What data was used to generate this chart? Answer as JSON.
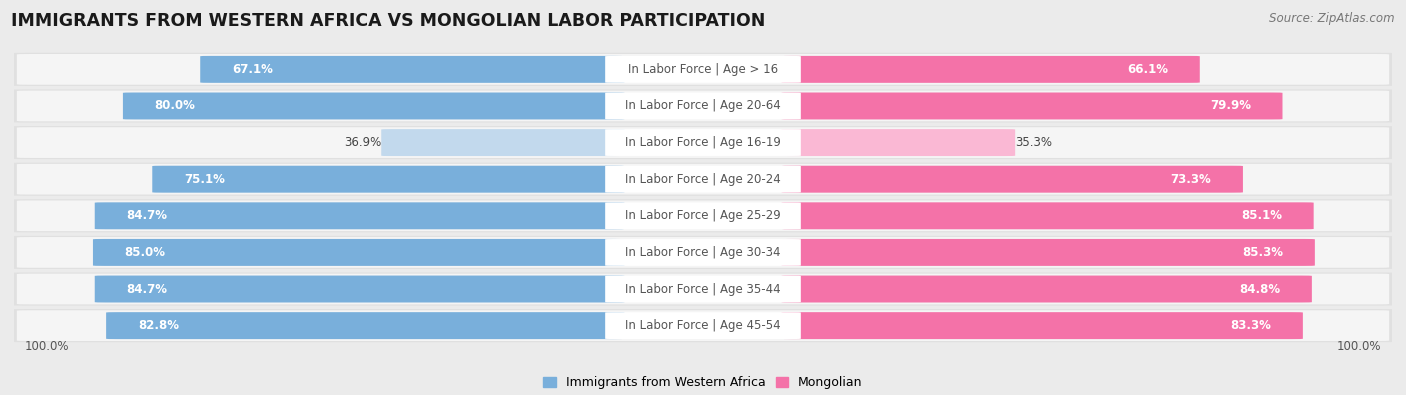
{
  "title": "IMMIGRANTS FROM WESTERN AFRICA VS MONGOLIAN LABOR PARTICIPATION",
  "source": "Source: ZipAtlas.com",
  "categories": [
    "In Labor Force | Age > 16",
    "In Labor Force | Age 20-64",
    "In Labor Force | Age 16-19",
    "In Labor Force | Age 20-24",
    "In Labor Force | Age 25-29",
    "In Labor Force | Age 30-34",
    "In Labor Force | Age 35-44",
    "In Labor Force | Age 45-54"
  ],
  "western_africa_values": [
    67.1,
    80.0,
    36.9,
    75.1,
    84.7,
    85.0,
    84.7,
    82.8
  ],
  "mongolian_values": [
    66.1,
    79.9,
    35.3,
    73.3,
    85.1,
    85.3,
    84.8,
    83.3
  ],
  "western_africa_color": "#79AFDB",
  "western_africa_light_color": "#C2D9ED",
  "mongolian_color": "#F472A8",
  "mongolian_light_color": "#FAB8D4",
  "row_outer_color": "#E0E0E0",
  "row_inner_color": "#F5F5F5",
  "center_label_color": "#FFFFFF",
  "center_label_text_color": "#555555",
  "bg_color": "#EBEBEB",
  "threshold": 50
}
